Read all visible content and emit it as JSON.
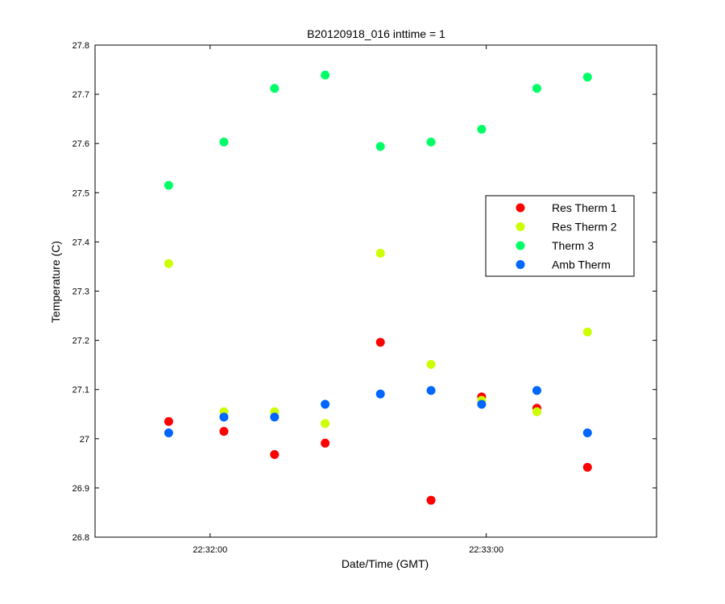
{
  "chart_data": {
    "type": "scatter",
    "title": "B20120918_016 inttime = 1",
    "xlabel": "Date/Time (GMT)",
    "ylabel": "Temperature (C)",
    "ylim": [
      26.8,
      27.8
    ],
    "y_ticks": [
      "26.8",
      "26.9",
      "27",
      "27.1",
      "27.2",
      "27.3",
      "27.4",
      "27.5",
      "27.6",
      "27.7",
      "27.8"
    ],
    "xlim": [
      "22:31:35",
      "22:33:37"
    ],
    "x_ticks": [
      "22:32:00",
      "22:33:00"
    ],
    "grid": false,
    "legend_position": "right-middle",
    "x": [
      "22:31:51",
      "22:32:03",
      "22:32:14",
      "22:32:25",
      "22:32:37",
      "22:32:48",
      "22:32:59",
      "22:33:11",
      "22:33:22"
    ],
    "series": [
      {
        "name": "Res Therm 1",
        "color": "#ff0000",
        "values": [
          27.035,
          27.015,
          26.968,
          26.991,
          27.196,
          26.875,
          27.085,
          27.062,
          26.942
        ]
      },
      {
        "name": "Res Therm 2",
        "color": "#ccff00",
        "values": [
          27.356,
          27.055,
          27.055,
          27.031,
          27.377,
          27.151,
          27.078,
          27.055,
          27.217
        ]
      },
      {
        "name": "Therm 3",
        "color": "#00ff66",
        "values": [
          27.515,
          27.603,
          27.712,
          27.739,
          27.594,
          27.603,
          27.629,
          27.712,
          27.735
        ]
      },
      {
        "name": "Amb Therm",
        "color": "#0066ff",
        "values": [
          27.012,
          27.044,
          27.044,
          27.07,
          27.091,
          27.098,
          27.07,
          27.098,
          27.012
        ]
      }
    ]
  }
}
